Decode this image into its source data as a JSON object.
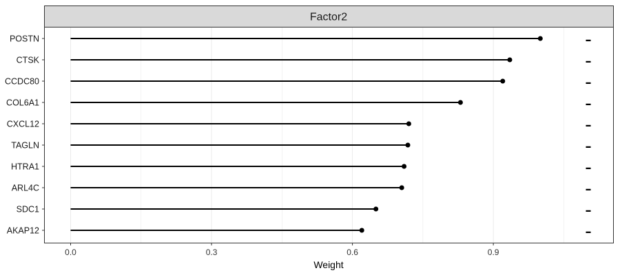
{
  "chart_data": {
    "type": "lollipop",
    "facet_title": "Factor2",
    "xlabel": "Weight",
    "ylabel": "",
    "xlim": [
      -0.055,
      1.155
    ],
    "x_ticks": [
      0.0,
      0.3,
      0.6,
      0.9
    ],
    "x_tick_labels": [
      "0.0",
      "0.3",
      "0.6",
      "0.9"
    ],
    "grid": true,
    "categories": [
      "POSTN",
      "CTSK",
      "CCDC80",
      "COL6A1",
      "CXCL12",
      "TAGLN",
      "HTRA1",
      "ARL4C",
      "SDC1",
      "AKAP12"
    ],
    "values": [
      1.0,
      0.935,
      0.92,
      0.83,
      0.72,
      0.718,
      0.71,
      0.705,
      0.65,
      0.62
    ],
    "sign_markers": [
      "–",
      "–",
      "–",
      "–",
      "–",
      "–",
      "–",
      "–",
      "–",
      "–"
    ],
    "colors": {
      "strip_fill": "#d9d9d9",
      "strip_border": "#333333",
      "panel_border": "#333333",
      "grid": "#ebebeb",
      "mark": "#000000"
    }
  }
}
